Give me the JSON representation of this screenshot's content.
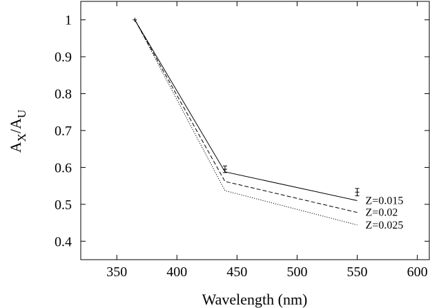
{
  "chart_data": {
    "type": "line",
    "title": "",
    "xlabel": "Wavelength (nm)",
    "ylabel_base": "A",
    "ylabel_sub_x": "X",
    "ylabel_sub_u": "U",
    "xlim": [
      320,
      610
    ],
    "ylim": [
      0.35,
      1.05
    ],
    "xticks": [
      350,
      400,
      450,
      500,
      550,
      600
    ],
    "yticks": [
      0.4,
      0.5,
      0.6,
      0.7,
      0.8,
      0.9,
      1.0
    ],
    "ytick_labels": [
      "0.4",
      "0.5",
      "0.6",
      "0.7",
      "0.8",
      "0.9",
      "1"
    ],
    "x": [
      365,
      440,
      550
    ],
    "series": [
      {
        "name": "Z=0.015",
        "values": [
          1.0,
          0.588,
          0.51
        ],
        "dash": "solid"
      },
      {
        "name": "Z=0.02",
        "values": [
          1.0,
          0.562,
          0.478
        ],
        "dash": "dashed"
      },
      {
        "name": "Z=0.025",
        "values": [
          1.0,
          0.537,
          0.444
        ],
        "dash": "dotted"
      }
    ],
    "observed": {
      "x": [
        365,
        440,
        550
      ],
      "y": [
        1.0,
        0.595,
        0.533
      ],
      "err": [
        0.0,
        0.009,
        0.01
      ]
    },
    "grid": false,
    "legend": "inline labels at line ends (right)"
  }
}
